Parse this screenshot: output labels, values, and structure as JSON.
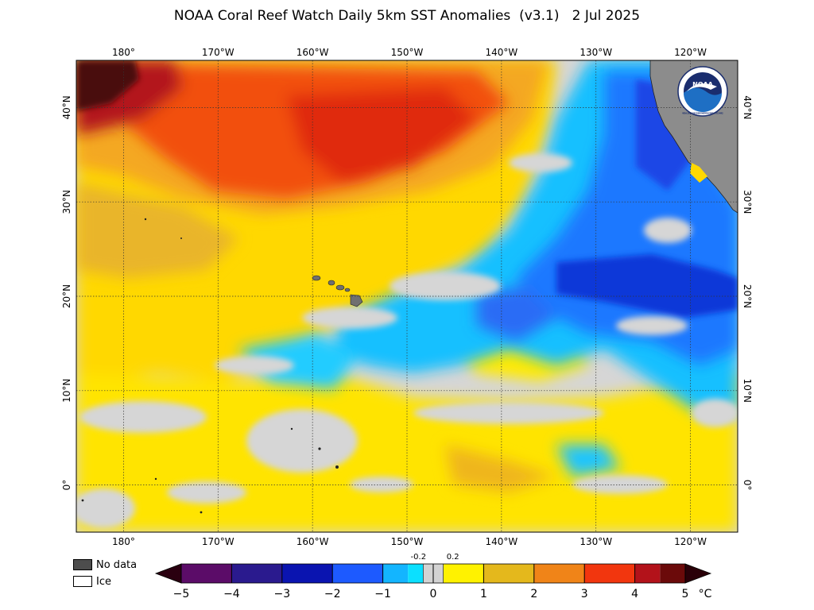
{
  "title": "NOAA Coral Reef Watch Daily 5km SST Anomalies  (v3.1)   2 Jul 2025",
  "logo_text": "NOAA",
  "logo_ring_text": "NATIONAL OCEANIC AND ATMOSPHERIC ADMINISTRATION · U.S. DEPARTMENT OF COMMERCE ·",
  "map": {
    "longitude_labels": [
      "180°",
      "170°W",
      "160°W",
      "150°W",
      "140°W",
      "130°W",
      "120°W"
    ],
    "latitude_labels": [
      "40°N",
      "30°N",
      "20°N",
      "10°N",
      "0°"
    ],
    "longitude_values": [
      -180,
      -170,
      -160,
      -150,
      -140,
      -130,
      -120
    ],
    "latitude_values": [
      40,
      30,
      20,
      10,
      0
    ],
    "extent": {
      "lon_min": -185,
      "lon_max": -115,
      "lat_min": -5,
      "lat_max": 45
    }
  },
  "legend": {
    "no_data_label": "No data",
    "ice_label": "Ice",
    "no_data_color": "#4d4d4d",
    "ice_color": "#ffffff"
  },
  "colorbar": {
    "unit": "°C",
    "tick_labels": [
      "−5",
      "−4",
      "−3",
      "−2",
      "−1",
      "0",
      "1",
      "2",
      "3",
      "4",
      "5"
    ],
    "tick_values": [
      -5,
      -4,
      -3,
      -2,
      -1,
      0,
      1,
      2,
      3,
      4,
      5
    ],
    "inner_labels": [
      "-0.2",
      "0.2"
    ],
    "inner_values": [
      -0.2,
      0.2
    ],
    "colors": {
      "under": "#2a0010",
      "over": "#2a0008",
      "neutral": "#d3d3d3",
      "negative": [
        "#5b0c68",
        "#2a1a8e",
        "#0a14b0",
        "#1d5aff",
        "#13b5ff",
        "#0be0ff"
      ],
      "positive": [
        "#fff200",
        "#e4b81c",
        "#f08418",
        "#f2360e",
        "#b3121a",
        "#6b0a0a"
      ]
    }
  }
}
